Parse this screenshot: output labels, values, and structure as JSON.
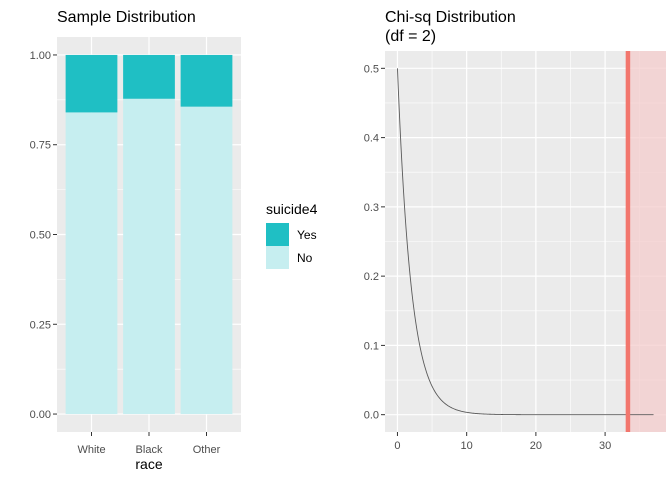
{
  "chart_data": [
    {
      "type": "bar",
      "stacked": true,
      "title": "Sample Distribution",
      "xlabel": "race",
      "ylabel": "",
      "categories": [
        "White",
        "Black",
        "Other"
      ],
      "series": [
        {
          "name": "No",
          "values": [
            0.84,
            0.878,
            0.856
          ],
          "color": "#c6eef0"
        },
        {
          "name": "Yes",
          "values": [
            0.16,
            0.122,
            0.144
          ],
          "color": "#1fbfc4"
        }
      ],
      "ylim": [
        0,
        1
      ],
      "yticks": [
        0,
        0.25,
        0.5,
        0.75,
        1.0
      ],
      "ytick_labels": [
        "0.00",
        "0.25",
        "0.50",
        "0.75",
        "1.00"
      ],
      "grid": true,
      "legend": {
        "title": "suicide4",
        "placement": "right",
        "items": [
          {
            "label": "Yes",
            "color": "#1fbfc4"
          },
          {
            "label": "No",
            "color": "#c6eef0"
          }
        ]
      }
    },
    {
      "type": "line",
      "title_lines": [
        "Chi-sq Distribution",
        "(df = 2)"
      ],
      "xlabel": "",
      "ylabel": "",
      "df": 2,
      "x_range": [
        0,
        37
      ],
      "xlim": [
        -1.8,
        38.8
      ],
      "ylim": [
        -0.025,
        0.525
      ],
      "xticks": [
        0,
        10,
        20,
        30
      ],
      "yticks": [
        0,
        0.1,
        0.2,
        0.3,
        0.4,
        0.5
      ],
      "ytick_labels": [
        "0.0",
        "0.1",
        "0.2",
        "0.3",
        "0.4",
        "0.5"
      ],
      "grid": true,
      "line_color": "#5a5a5a",
      "critical_value": 33.3,
      "critical_line_color": "#f2766d",
      "shade_color": "#f4cccc"
    }
  ]
}
